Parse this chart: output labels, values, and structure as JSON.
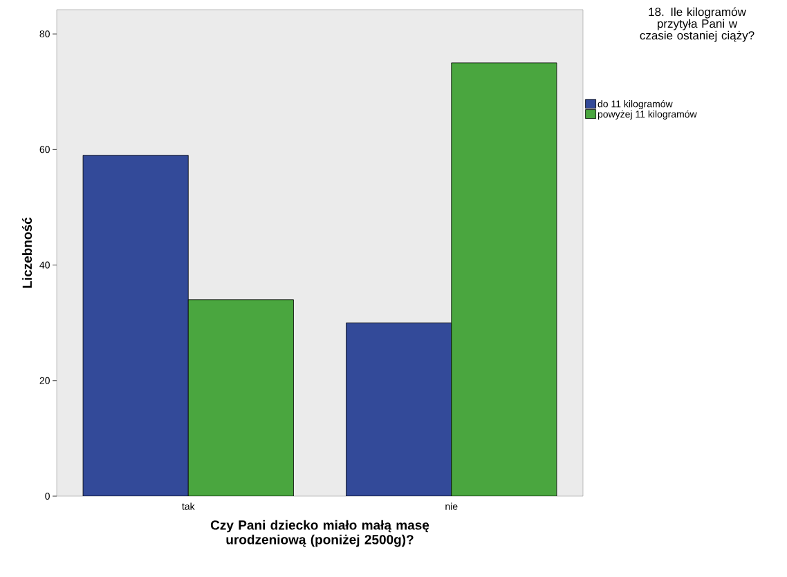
{
  "chart_data": {
    "type": "bar",
    "xlabel": "Czy Pani dziecko miało małą masę urodzeniową (poniżej 2500g)?",
    "ylabel": "Liczebność",
    "legend_title": "18. Ile kilogramów przytyła Pani w czasie ostaniej ciąży?",
    "categories": [
      "tak",
      "nie"
    ],
    "series": [
      {
        "name": "do 11 kilogramów",
        "color": "#334a99",
        "values": [
          59,
          30
        ]
      },
      {
        "name": "powyżej 11 kilogramów",
        "color": "#4aa63f",
        "values": [
          34,
          75
        ]
      }
    ],
    "ylim": [
      0,
      84.2
    ],
    "yticks": [
      0,
      20,
      40,
      60,
      80
    ],
    "grid": false,
    "legend": "top right"
  }
}
